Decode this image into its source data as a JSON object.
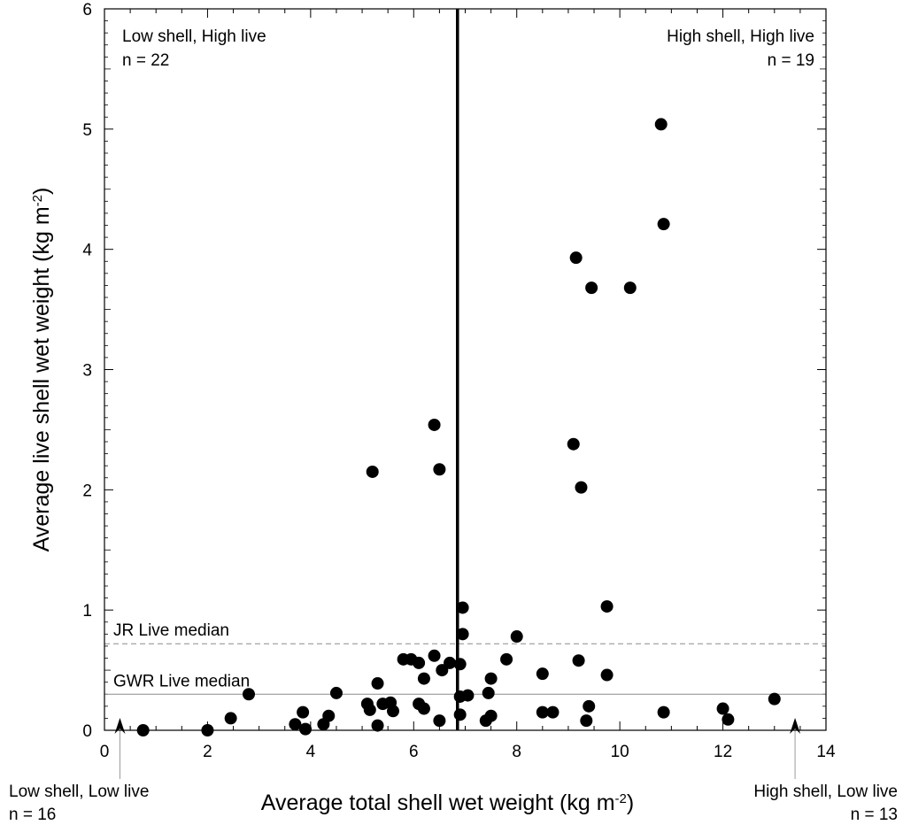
{
  "chart_data": {
    "type": "scatter",
    "title": "",
    "xlabel_main": "Average total shell wet weight (kg m",
    "xlabel_sup": "-2",
    "xlabel_end": ")",
    "ylabel_main": "Average live shell wet weight (kg m",
    "ylabel_sup": "-2",
    "ylabel_end": ")",
    "xlim": [
      0,
      14
    ],
    "ylim": [
      0,
      6
    ],
    "x_ticks": [
      0,
      2,
      4,
      6,
      8,
      10,
      12,
      14
    ],
    "y_ticks": [
      0,
      1,
      2,
      3,
      4,
      5,
      6
    ],
    "grid": false,
    "threshold_x": 6.85,
    "medians": [
      {
        "label": "JR Live median",
        "y": 0.72,
        "style": "dashed"
      },
      {
        "label": "GWR Live median",
        "y": 0.3,
        "style": "solid"
      }
    ],
    "quadrants": {
      "top_left": {
        "title": "Low shell, High live",
        "n": "n = 22"
      },
      "top_right": {
        "title": "High shell, High live",
        "n": "n = 19"
      },
      "bottom_left": {
        "title": "Low shell, Low live",
        "n": "n = 16"
      },
      "bottom_right": {
        "title": "High shell, Low live",
        "n": "n = 13"
      }
    },
    "arrows_x": [
      0.3,
      13.4
    ],
    "points": [
      [
        0.75,
        0.0
      ],
      [
        2.0,
        0.0
      ],
      [
        2.45,
        0.1
      ],
      [
        2.8,
        0.3
      ],
      [
        3.7,
        0.05
      ],
      [
        3.85,
        0.15
      ],
      [
        3.9,
        0.01
      ],
      [
        4.25,
        0.05
      ],
      [
        4.35,
        0.12
      ],
      [
        4.5,
        0.31
      ],
      [
        5.1,
        0.22
      ],
      [
        5.15,
        0.17
      ],
      [
        5.3,
        0.39
      ],
      [
        5.3,
        0.04
      ],
      [
        5.4,
        0.22
      ],
      [
        5.55,
        0.23
      ],
      [
        5.6,
        0.16
      ],
      [
        5.8,
        0.59
      ],
      [
        5.95,
        0.59
      ],
      [
        6.1,
        0.22
      ],
      [
        6.1,
        0.56
      ],
      [
        6.2,
        0.18
      ],
      [
        6.2,
        0.43
      ],
      [
        6.4,
        0.62
      ],
      [
        6.5,
        0.08
      ],
      [
        6.55,
        0.5
      ],
      [
        6.7,
        0.56
      ],
      [
        6.9,
        0.55
      ],
      [
        6.9,
        0.28
      ],
      [
        6.9,
        0.13
      ],
      [
        6.95,
        0.8
      ],
      [
        6.95,
        1.02
      ],
      [
        7.05,
        0.29
      ],
      [
        7.4,
        0.08
      ],
      [
        7.45,
        0.31
      ],
      [
        7.5,
        0.12
      ],
      [
        7.5,
        0.43
      ],
      [
        7.8,
        0.59
      ],
      [
        8.0,
        0.78
      ],
      [
        8.5,
        0.47
      ],
      [
        8.5,
        0.15
      ],
      [
        8.7,
        0.15
      ],
      [
        9.2,
        0.58
      ],
      [
        9.35,
        0.08
      ],
      [
        9.4,
        0.2
      ],
      [
        9.75,
        1.03
      ],
      [
        9.75,
        0.46
      ],
      [
        10.85,
        0.15
      ],
      [
        12.0,
        0.18
      ],
      [
        12.1,
        0.09
      ],
      [
        13.0,
        0.26
      ],
      [
        5.2,
        2.15
      ],
      [
        6.4,
        2.54
      ],
      [
        6.5,
        2.17
      ],
      [
        9.1,
        2.38
      ],
      [
        9.25,
        2.02
      ],
      [
        9.15,
        3.93
      ],
      [
        9.45,
        3.68
      ],
      [
        10.2,
        3.68
      ],
      [
        10.8,
        5.04
      ],
      [
        10.85,
        4.21
      ]
    ]
  }
}
